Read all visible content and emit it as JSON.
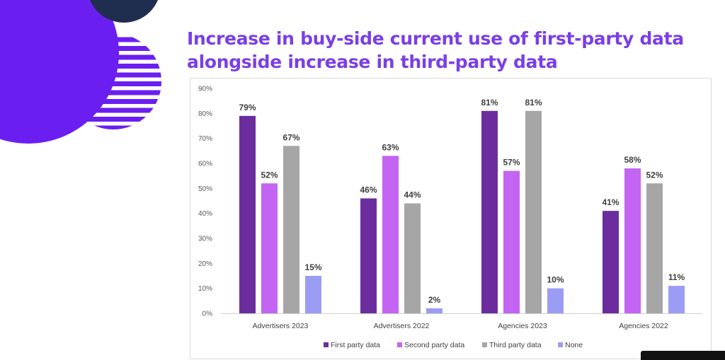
{
  "slide": {
    "title_lines": [
      "Increase in buy-side current use of first-party data",
      "alongside increase in third-party data"
    ]
  },
  "chart_data": {
    "type": "bar",
    "title": "Increase in buy-side current use of first-party data alongside increase in third-party data",
    "categories": [
      "Advertisers 2023",
      "Advertisers 2022",
      "Agencies 2023",
      "Agencies 2022"
    ],
    "series": [
      {
        "name": "First party data",
        "color": "#6b2d9e",
        "values": [
          79,
          46,
          81,
          41
        ]
      },
      {
        "name": "Second party data",
        "color": "#c365f2",
        "values": [
          52,
          63,
          57,
          58
        ]
      },
      {
        "name": "Third party data",
        "color": "#a6a6a6",
        "values": [
          67,
          44,
          81,
          52
        ]
      },
      {
        "name": "None",
        "color": "#9b9df5",
        "values": [
          15,
          2,
          10,
          11
        ]
      }
    ],
    "ylim": [
      0,
      90
    ],
    "yticks": [
      "0%",
      "10%",
      "20%",
      "30%",
      "40%",
      "50%",
      "60%",
      "70%",
      "80%",
      "90%"
    ],
    "value_suffix": "%",
    "grid": false,
    "legend": "bottom"
  },
  "colors": {
    "title": "#7a3fe6",
    "brand_purple": "#6a1ff0",
    "navy": "#1f2d4f"
  }
}
